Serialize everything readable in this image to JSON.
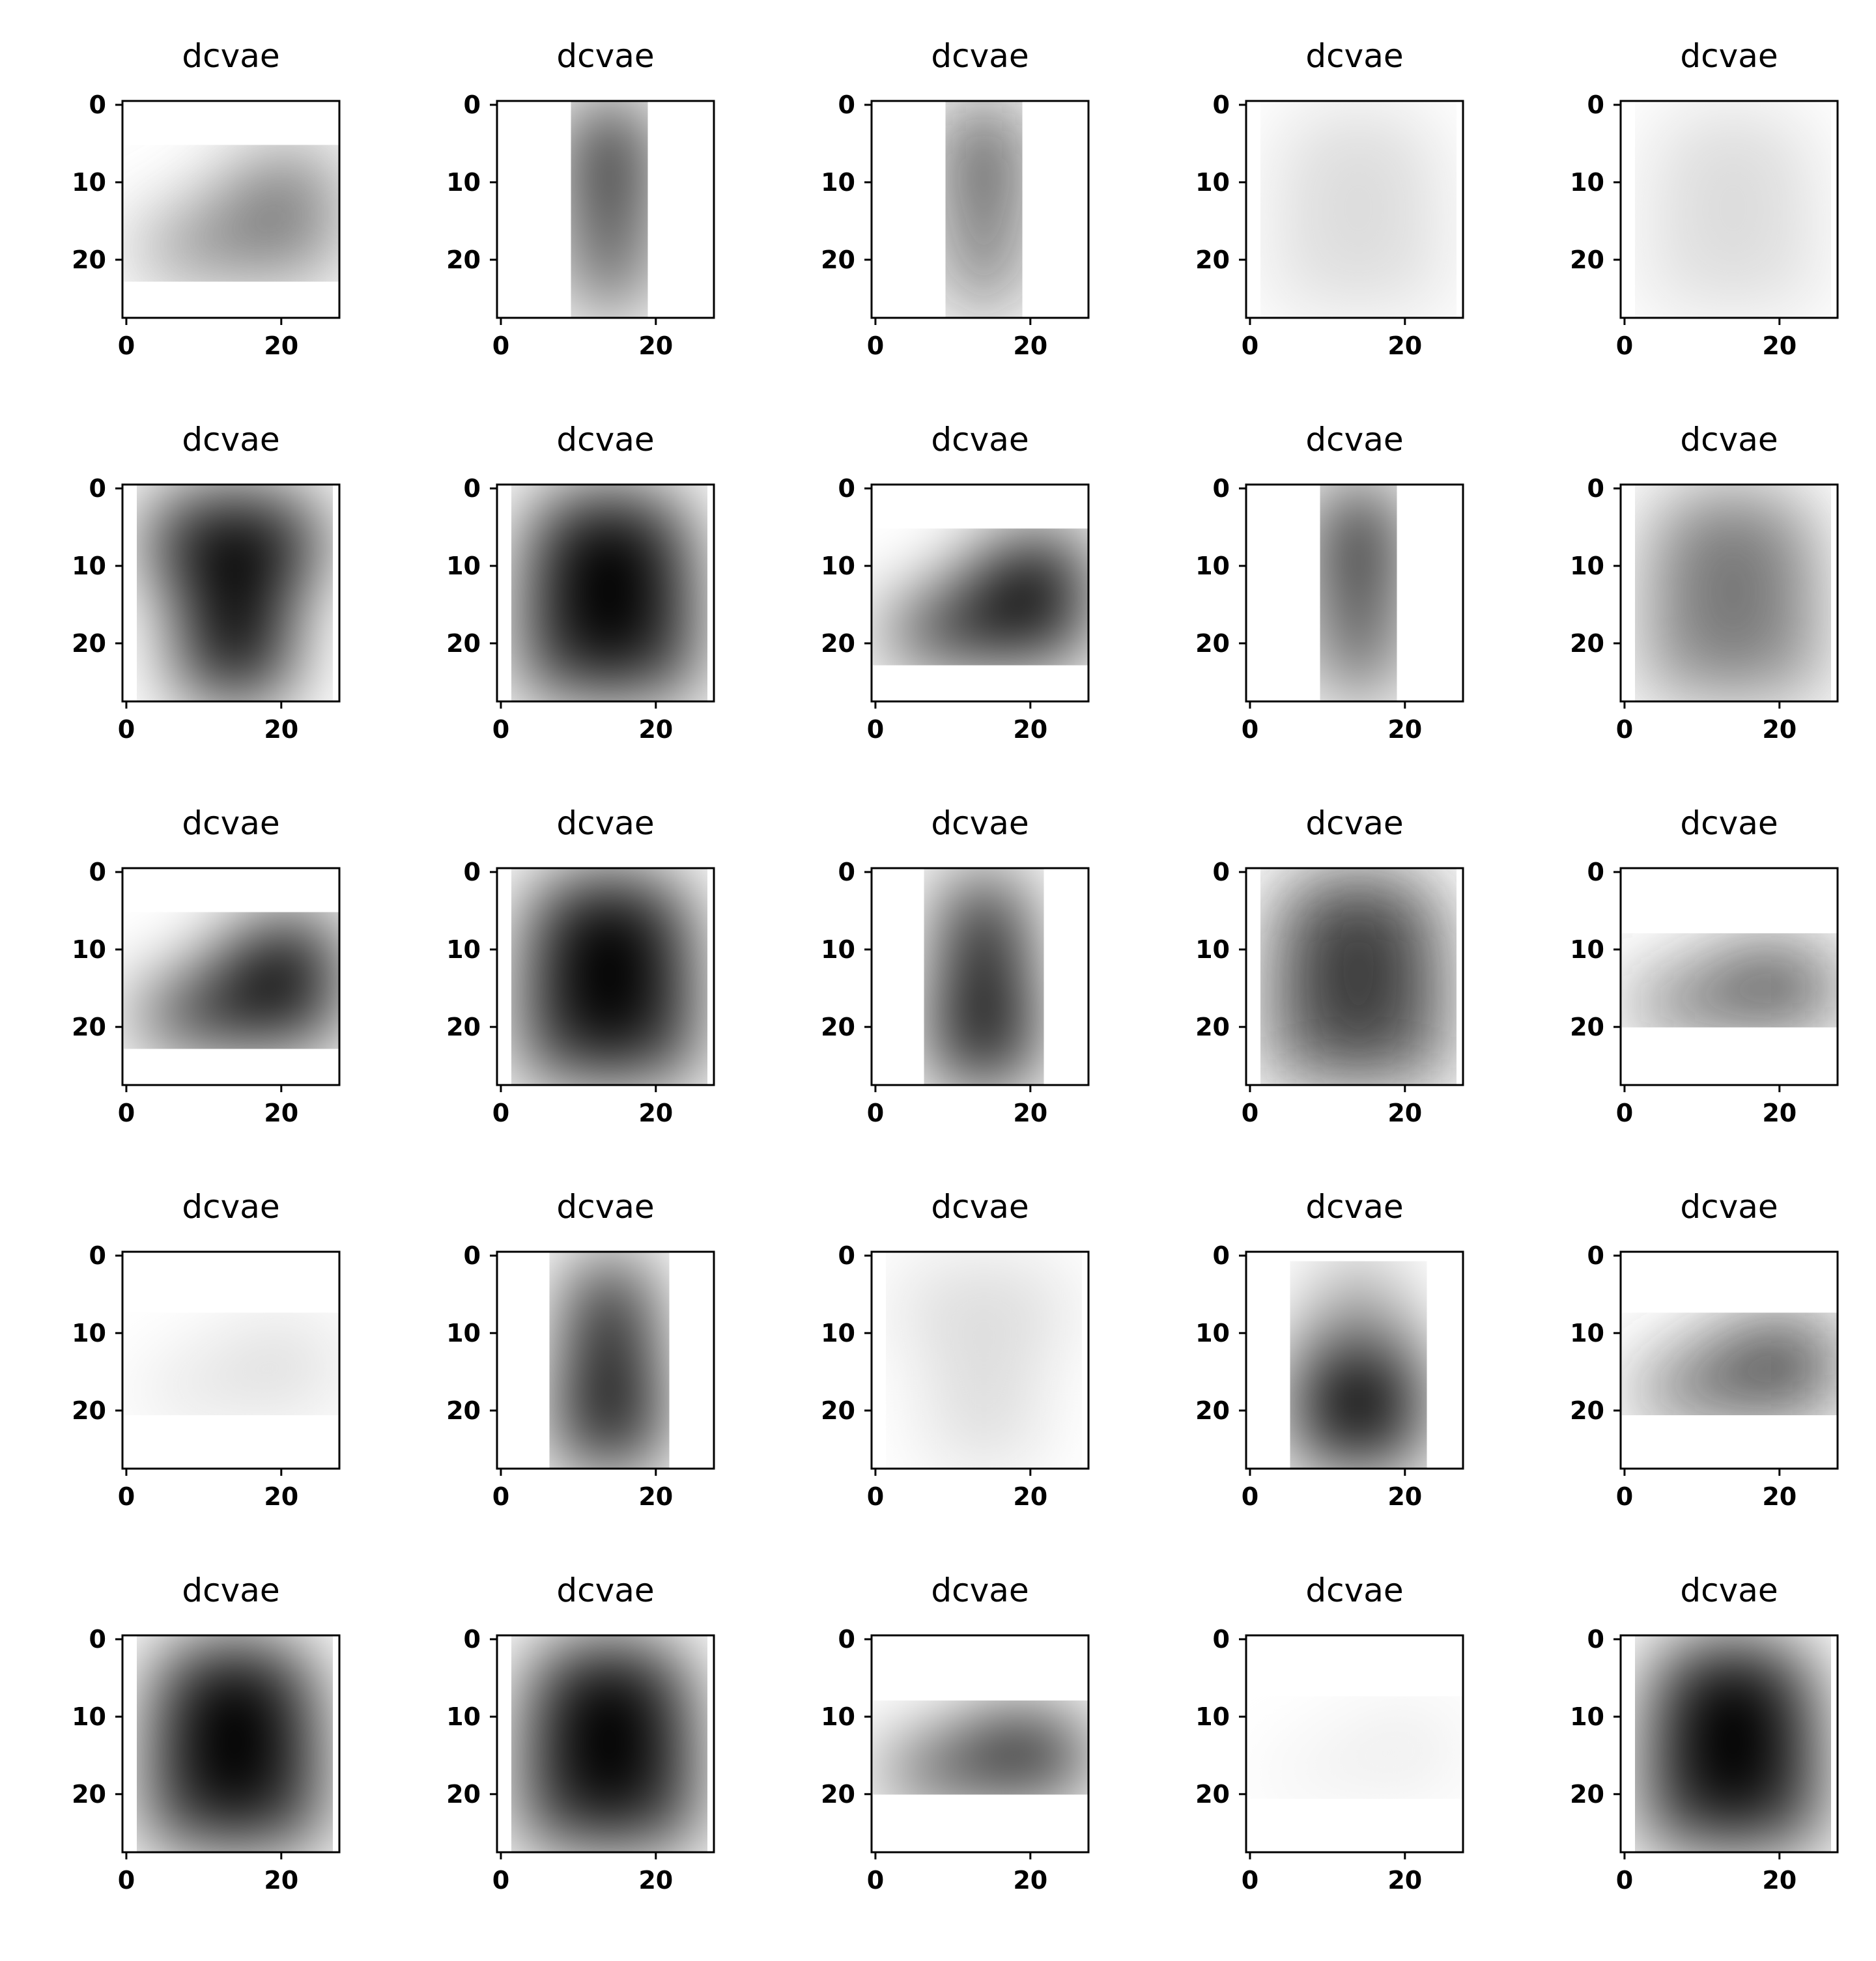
{
  "figure": {
    "grid_rows": 5,
    "grid_cols": 5,
    "background": "#ffffff"
  },
  "chart_data": [
    {
      "type": "heatmap",
      "title": "dcvae",
      "content": "ankle-boot",
      "tone": "mid-gray",
      "colormap": "gray_r",
      "xticks": [
        0,
        20
      ],
      "yticks": [
        0,
        10,
        20
      ],
      "xlim": [
        -0.5,
        27.5
      ],
      "ylim": [
        27.5,
        -0.5
      ]
    },
    {
      "type": "heatmap",
      "title": "dcvae",
      "content": "trouser",
      "tone": "black",
      "colormap": "gray_r",
      "xticks": [
        0,
        20
      ],
      "yticks": [
        0,
        10,
        20
      ],
      "xlim": [
        -0.5,
        27.5
      ],
      "ylim": [
        27.5,
        -0.5
      ]
    },
    {
      "type": "heatmap",
      "title": "dcvae",
      "content": "trouser",
      "tone": "dark-gray",
      "colormap": "gray_r",
      "xticks": [
        0,
        20
      ],
      "yticks": [
        0,
        10,
        20
      ],
      "xlim": [
        -0.5,
        27.5
      ],
      "ylim": [
        27.5,
        -0.5
      ]
    },
    {
      "type": "heatmap",
      "title": "dcvae",
      "content": "shirt",
      "tone": "light-gray",
      "colormap": "gray_r",
      "xticks": [
        0,
        20
      ],
      "yticks": [
        0,
        10,
        20
      ],
      "xlim": [
        -0.5,
        27.5
      ],
      "ylim": [
        27.5,
        -0.5
      ]
    },
    {
      "type": "heatmap",
      "title": "dcvae",
      "content": "shirt",
      "tone": "light-gray",
      "colormap": "gray_r",
      "xticks": [
        0,
        20
      ],
      "yticks": [
        0,
        10,
        20
      ],
      "xlim": [
        -0.5,
        27.5
      ],
      "ylim": [
        27.5,
        -0.5
      ]
    },
    {
      "type": "heatmap",
      "title": "dcvae",
      "content": "t-shirt",
      "tone": "black",
      "colormap": "gray_r",
      "xticks": [
        0,
        20
      ],
      "yticks": [
        0,
        10,
        20
      ],
      "xlim": [
        -0.5,
        27.5
      ],
      "ylim": [
        27.5,
        -0.5
      ]
    },
    {
      "type": "heatmap",
      "title": "dcvae",
      "content": "pullover",
      "tone": "black",
      "colormap": "gray_r",
      "xticks": [
        0,
        20
      ],
      "yticks": [
        0,
        10,
        20
      ],
      "xlim": [
        -0.5,
        27.5
      ],
      "ylim": [
        27.5,
        -0.5
      ]
    },
    {
      "type": "heatmap",
      "title": "dcvae",
      "content": "ankle-boot",
      "tone": "black",
      "colormap": "gray_r",
      "xticks": [
        0,
        20
      ],
      "yticks": [
        0,
        10,
        20
      ],
      "xlim": [
        -0.5,
        27.5
      ],
      "ylim": [
        27.5,
        -0.5
      ]
    },
    {
      "type": "heatmap",
      "title": "dcvae",
      "content": "trouser",
      "tone": "black",
      "colormap": "gray_r",
      "xticks": [
        0,
        20
      ],
      "yticks": [
        0,
        10,
        20
      ],
      "xlim": [
        -0.5,
        27.5
      ],
      "ylim": [
        27.5,
        -0.5
      ]
    },
    {
      "type": "heatmap",
      "title": "dcvae",
      "content": "pullover",
      "tone": "mid-gray",
      "colormap": "gray_r",
      "xticks": [
        0,
        20
      ],
      "yticks": [
        0,
        10,
        20
      ],
      "xlim": [
        -0.5,
        27.5
      ],
      "ylim": [
        27.5,
        -0.5
      ]
    },
    {
      "type": "heatmap",
      "title": "dcvae",
      "content": "ankle-boot",
      "tone": "black",
      "colormap": "gray_r",
      "xticks": [
        0,
        20
      ],
      "yticks": [
        0,
        10,
        20
      ],
      "xlim": [
        -0.5,
        27.5
      ],
      "ylim": [
        27.5,
        -0.5
      ]
    },
    {
      "type": "heatmap",
      "title": "dcvae",
      "content": "pullover",
      "tone": "black",
      "colormap": "gray_r",
      "xticks": [
        0,
        20
      ],
      "yticks": [
        0,
        10,
        20
      ],
      "xlim": [
        -0.5,
        27.5
      ],
      "ylim": [
        27.5,
        -0.5
      ]
    },
    {
      "type": "heatmap",
      "title": "dcvae",
      "content": "dress",
      "tone": "black",
      "colormap": "gray_r",
      "xticks": [
        0,
        20
      ],
      "yticks": [
        0,
        10,
        20
      ],
      "xlim": [
        -0.5,
        27.5
      ],
      "ylim": [
        27.5,
        -0.5
      ]
    },
    {
      "type": "heatmap",
      "title": "dcvae",
      "content": "coat",
      "tone": "dark-gray",
      "colormap": "gray_r",
      "xticks": [
        0,
        20
      ],
      "yticks": [
        0,
        10,
        20
      ],
      "xlim": [
        -0.5,
        27.5
      ],
      "ylim": [
        27.5,
        -0.5
      ]
    },
    {
      "type": "heatmap",
      "title": "dcvae",
      "content": "sneaker",
      "tone": "dark-gray",
      "colormap": "gray_r",
      "xticks": [
        0,
        20
      ],
      "yticks": [
        0,
        10,
        20
      ],
      "xlim": [
        -0.5,
        27.5
      ],
      "ylim": [
        27.5,
        -0.5
      ]
    },
    {
      "type": "heatmap",
      "title": "dcvae",
      "content": "sandal",
      "tone": "light-gray",
      "colormap": "gray_r",
      "xticks": [
        0,
        20
      ],
      "yticks": [
        0,
        10,
        20
      ],
      "xlim": [
        -0.5,
        27.5
      ],
      "ylim": [
        27.5,
        -0.5
      ]
    },
    {
      "type": "heatmap",
      "title": "dcvae",
      "content": "dress",
      "tone": "black",
      "colormap": "gray_r",
      "xticks": [
        0,
        20
      ],
      "yticks": [
        0,
        10,
        20
      ],
      "xlim": [
        -0.5,
        27.5
      ],
      "ylim": [
        27.5,
        -0.5
      ]
    },
    {
      "type": "heatmap",
      "title": "dcvae",
      "content": "t-shirt",
      "tone": "light-gray",
      "colormap": "gray_r",
      "xticks": [
        0,
        20
      ],
      "yticks": [
        0,
        10,
        20
      ],
      "xlim": [
        -0.5,
        27.5
      ],
      "ylim": [
        27.5,
        -0.5
      ]
    },
    {
      "type": "heatmap",
      "title": "dcvae",
      "content": "bag",
      "tone": "black",
      "colormap": "gray_r",
      "xticks": [
        0,
        20
      ],
      "yticks": [
        0,
        10,
        20
      ],
      "xlim": [
        -0.5,
        27.5
      ],
      "ylim": [
        27.5,
        -0.5
      ]
    },
    {
      "type": "heatmap",
      "title": "dcvae",
      "content": "sandal",
      "tone": "dark-gray",
      "colormap": "gray_r",
      "xticks": [
        0,
        20
      ],
      "yticks": [
        0,
        10,
        20
      ],
      "xlim": [
        -0.5,
        27.5
      ],
      "ylim": [
        27.5,
        -0.5
      ]
    },
    {
      "type": "heatmap",
      "title": "dcvae",
      "content": "pullover",
      "tone": "black",
      "colormap": "gray_r",
      "xticks": [
        0,
        20
      ],
      "yticks": [
        0,
        10,
        20
      ],
      "xlim": [
        -0.5,
        27.5
      ],
      "ylim": [
        27.5,
        -0.5
      ]
    },
    {
      "type": "heatmap",
      "title": "dcvae",
      "content": "pullover",
      "tone": "black",
      "colormap": "gray_r",
      "xticks": [
        0,
        20
      ],
      "yticks": [
        0,
        10,
        20
      ],
      "xlim": [
        -0.5,
        27.5
      ],
      "ylim": [
        27.5,
        -0.5
      ]
    },
    {
      "type": "heatmap",
      "title": "dcvae",
      "content": "sneaker",
      "tone": "black",
      "colormap": "gray_r",
      "xticks": [
        0,
        20
      ],
      "yticks": [
        0,
        10,
        20
      ],
      "xlim": [
        -0.5,
        27.5
      ],
      "ylim": [
        27.5,
        -0.5
      ]
    },
    {
      "type": "heatmap",
      "title": "dcvae",
      "content": "sandal",
      "tone": "faint-gray",
      "colormap": "gray_r",
      "xticks": [
        0,
        20
      ],
      "yticks": [
        0,
        10,
        20
      ],
      "xlim": [
        -0.5,
        27.5
      ],
      "ylim": [
        27.5,
        -0.5
      ]
    },
    {
      "type": "heatmap",
      "title": "dcvae",
      "content": "pullover",
      "tone": "black",
      "colormap": "gray_r",
      "xticks": [
        0,
        20
      ],
      "yticks": [
        0,
        10,
        20
      ],
      "xlim": [
        -0.5,
        27.5
      ],
      "ylim": [
        27.5,
        -0.5
      ]
    }
  ]
}
